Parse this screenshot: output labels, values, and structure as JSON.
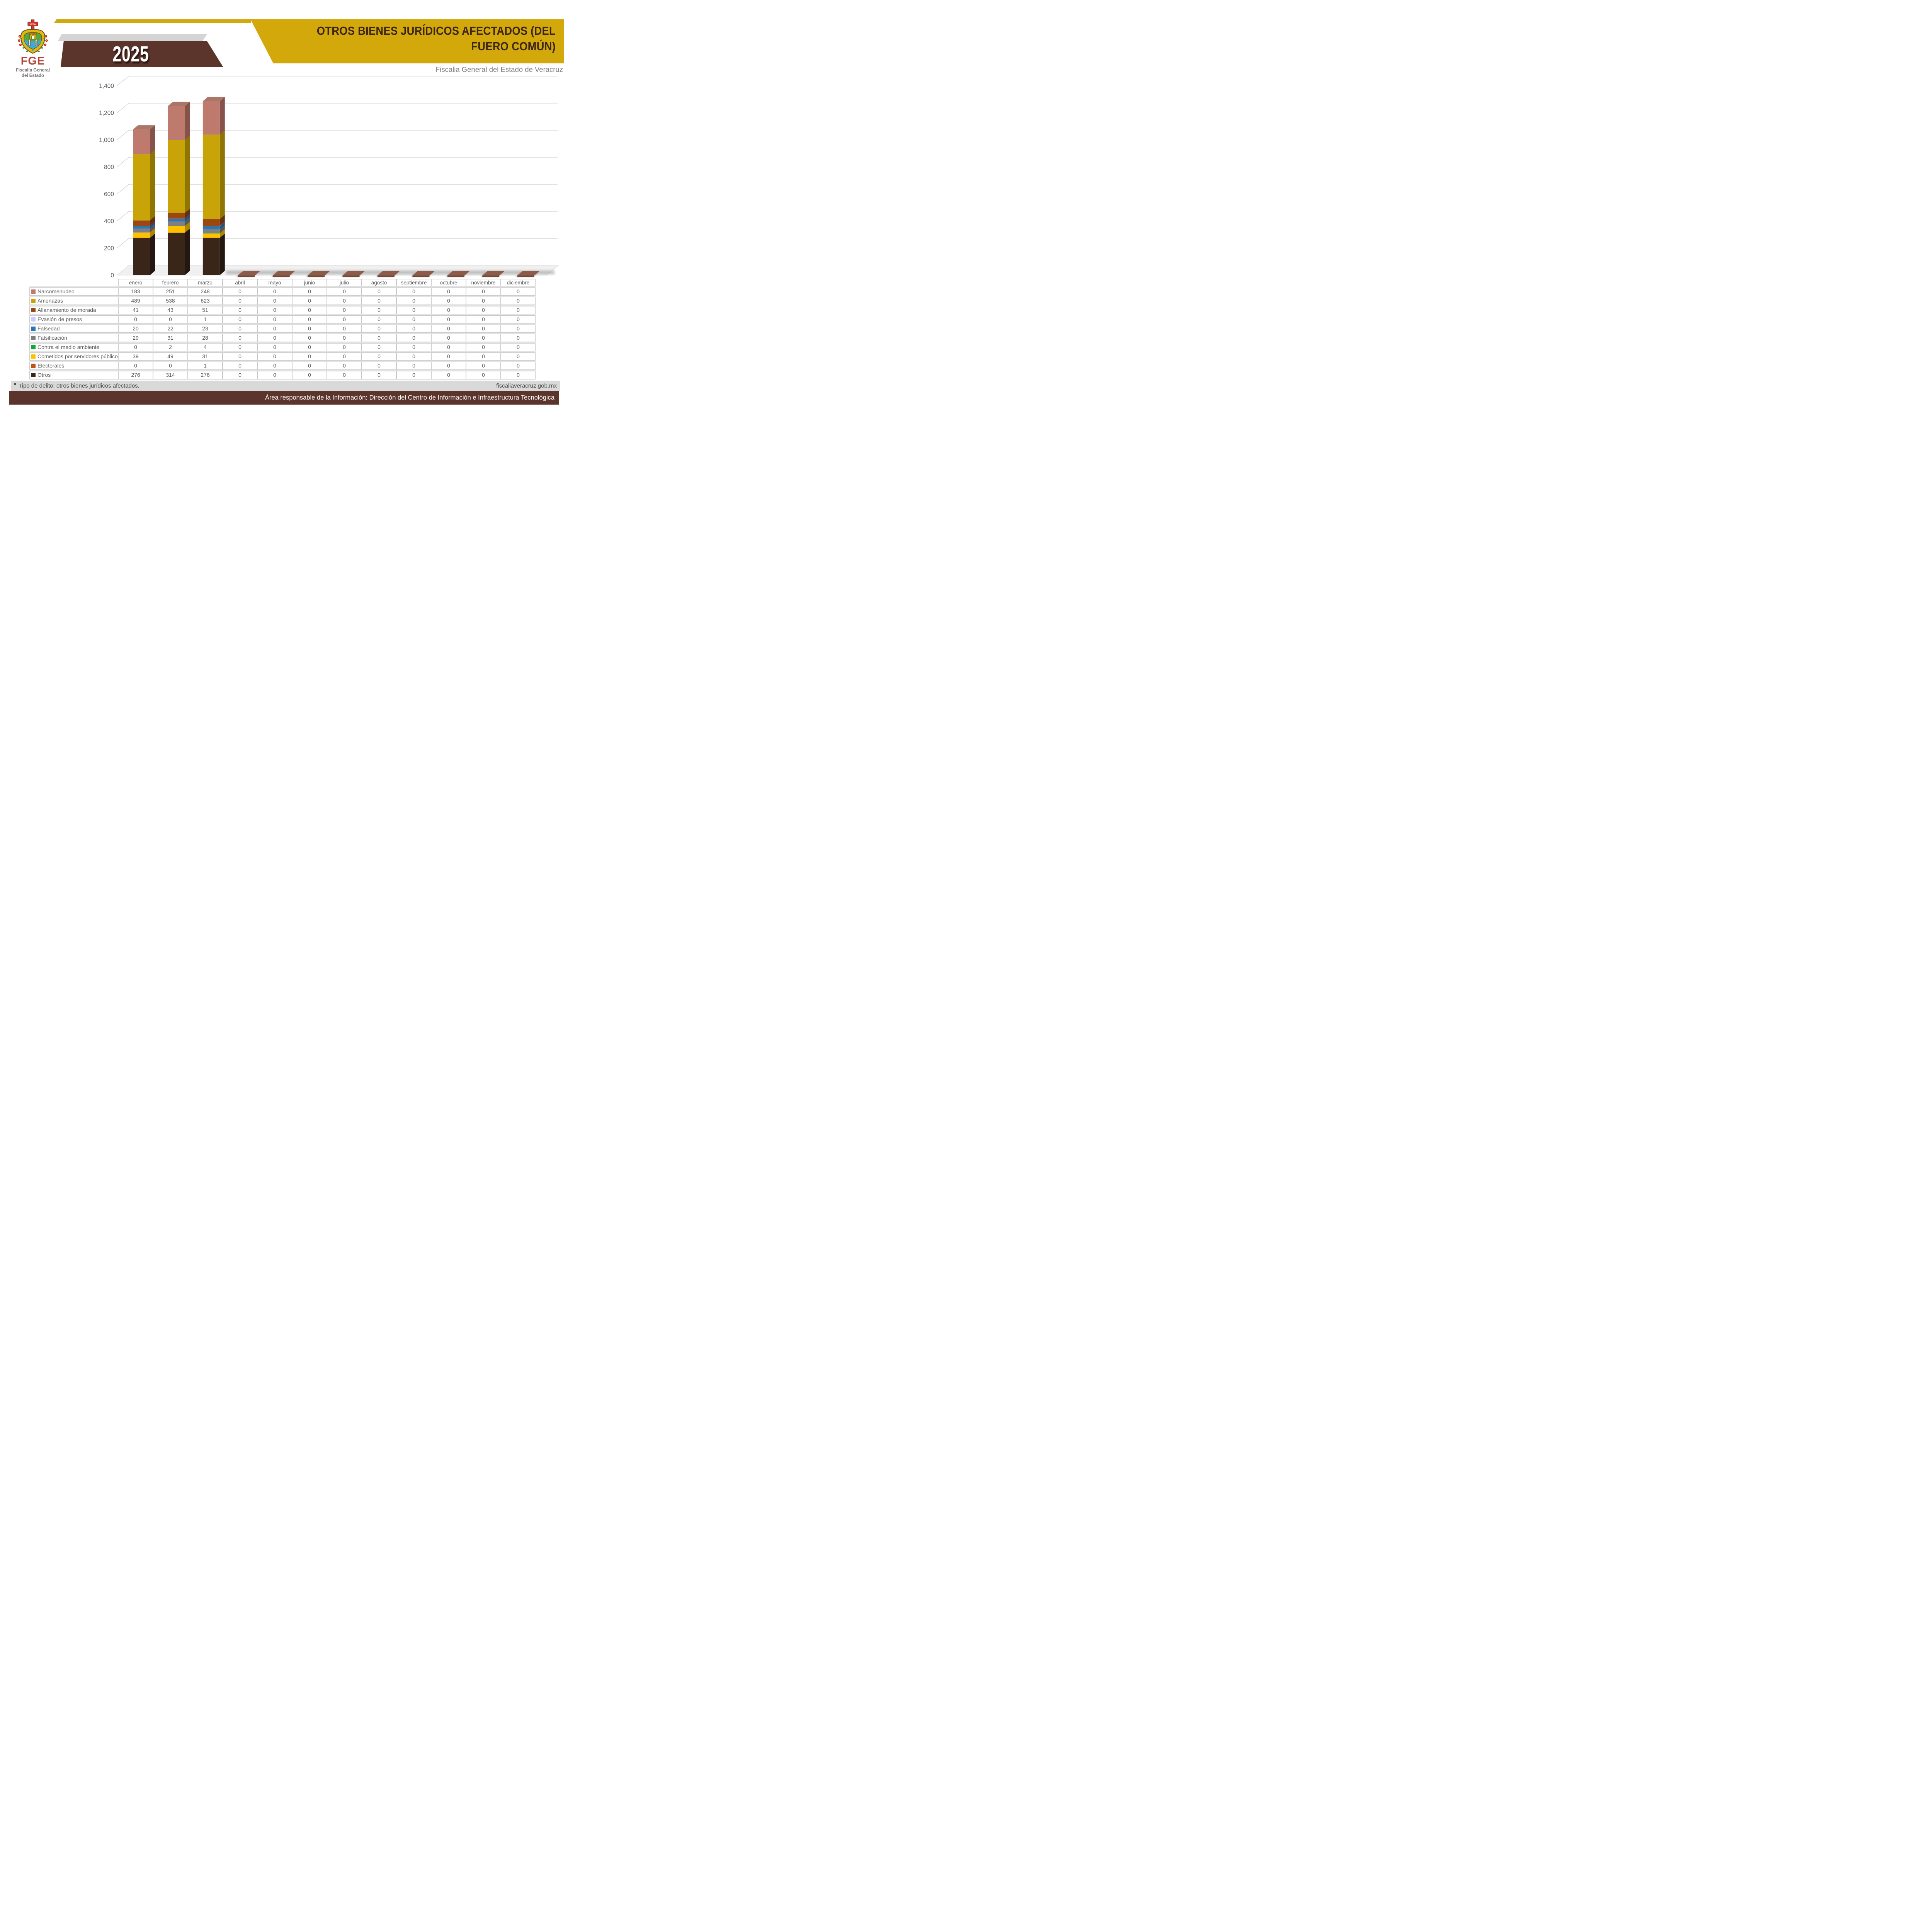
{
  "header": {
    "logo": {
      "acronym": "FGE",
      "org_line1": "Fiscalía General",
      "org_line2": "del Estado",
      "cross_label": "VERA",
      "scroll_left": "PLUS",
      "scroll_right": "ULTRA"
    },
    "year": "2025",
    "title_lines": [
      "OTROS BIENES JURÍDICOS AFECTADOS (DEL",
      "FUERO COMÚN)"
    ],
    "subtitle": "Fiscalia General del Estado de Veracruz",
    "colors": {
      "gold": "#D2A80A",
      "brown": "#5B342B"
    }
  },
  "chart_data": {
    "type": "bar",
    "stacked": true,
    "three_d": true,
    "title": "",
    "xlabel": "",
    "ylabel": "",
    "ylim": [
      0,
      1400
    ],
    "ytick_step": 200,
    "y_tick_labels": [
      "0",
      "200",
      "400",
      "600",
      "800",
      "1,000",
      "1,200",
      "1,400"
    ],
    "grid": true,
    "legend_position": "table-left",
    "stack_order": "last-listed-series-at-bottom",
    "categories": [
      "enero",
      "febrero",
      "marzo",
      "abril",
      "mayo",
      "junio",
      "julio",
      "agosto",
      "septiembre",
      "octubre",
      "noviembre",
      "diciembre"
    ],
    "series": [
      {
        "name": "Narcomenudeo",
        "color": "#BE7B6D",
        "side_color": "#855349",
        "top_color": "#A87768",
        "values": [
          183,
          251,
          248,
          0,
          0,
          0,
          0,
          0,
          0,
          0,
          0,
          0
        ]
      },
      {
        "name": "Amenazas",
        "color": "#C9A408",
        "side_color": "#8F7502",
        "top_color": "#D9BC25",
        "values": [
          489,
          538,
          623,
          0,
          0,
          0,
          0,
          0,
          0,
          0,
          0,
          0
        ]
      },
      {
        "name": "Allanamiento de morada",
        "color": "#9A480E",
        "side_color": "#68300A",
        "top_color": "#B05A1A",
        "values": [
          41,
          43,
          51,
          0,
          0,
          0,
          0,
          0,
          0,
          0,
          0,
          0
        ]
      },
      {
        "name": "Evasión de presos",
        "color": "#CCCCFF",
        "side_color": "#9A9AD6",
        "top_color": "#DEDEFF",
        "values": [
          0,
          0,
          1,
          0,
          0,
          0,
          0,
          0,
          0,
          0,
          0,
          0
        ]
      },
      {
        "name": "Falsedad",
        "color": "#2E75B6",
        "side_color": "#1F5080",
        "top_color": "#4C8BC4",
        "values": [
          20,
          22,
          23,
          0,
          0,
          0,
          0,
          0,
          0,
          0,
          0,
          0
        ]
      },
      {
        "name": "Falsificación",
        "color": "#7F7F7F",
        "side_color": "#565656",
        "top_color": "#969696",
        "values": [
          29,
          31,
          28,
          0,
          0,
          0,
          0,
          0,
          0,
          0,
          0,
          0
        ]
      },
      {
        "name": "Contra el medio ambiente",
        "color": "#12A63F",
        "side_color": "#0B7229",
        "top_color": "#2DBC57",
        "values": [
          0,
          2,
          4,
          0,
          0,
          0,
          0,
          0,
          0,
          0,
          0,
          0
        ]
      },
      {
        "name": "Cometidos por servidores públicos",
        "color": "#FFC000",
        "side_color": "#B08500",
        "top_color": "#FFD24A",
        "values": [
          39,
          49,
          31,
          0,
          0,
          0,
          0,
          0,
          0,
          0,
          0,
          0
        ]
      },
      {
        "name": "Electorales",
        "color": "#C05317",
        "side_color": "#833A10",
        "top_color": "#D3692B",
        "values": [
          0,
          0,
          1,
          0,
          0,
          0,
          0,
          0,
          0,
          0,
          0,
          0
        ]
      },
      {
        "name": "Otros",
        "color": "#3A2519",
        "side_color": "#241711",
        "top_color": "#4C3122",
        "values": [
          276,
          314,
          276,
          0,
          0,
          0,
          0,
          0,
          0,
          0,
          0,
          0
        ]
      }
    ],
    "zero_marker_color": "#8D5B49",
    "floor_color": "#F0F0F0",
    "gridline_color": "#D0D0D0",
    "axis_label_color": "#595959"
  },
  "table": {
    "corner_label": "",
    "columns": [
      "enero",
      "febrero",
      "marzo",
      "abril",
      "mayo",
      "junio",
      "julio",
      "agosto",
      "septiembre",
      "octubre",
      "noviembre",
      "diciembre"
    ],
    "rows": [
      {
        "label": "Narcomenudeo",
        "color": "#BE7B6D",
        "values": [
          183,
          251,
          248,
          0,
          0,
          0,
          0,
          0,
          0,
          0,
          0,
          0
        ]
      },
      {
        "label": "Amenazas",
        "color": "#C9A408",
        "values": [
          489,
          538,
          623,
          0,
          0,
          0,
          0,
          0,
          0,
          0,
          0,
          0
        ]
      },
      {
        "label": "Allanamiento de morada",
        "color": "#9A480E",
        "values": [
          41,
          43,
          51,
          0,
          0,
          0,
          0,
          0,
          0,
          0,
          0,
          0
        ]
      },
      {
        "label": "Evasión de presos",
        "color": "#CCCCFF",
        "values": [
          0,
          0,
          1,
          0,
          0,
          0,
          0,
          0,
          0,
          0,
          0,
          0
        ]
      },
      {
        "label": "Falsedad",
        "color": "#2E75B6",
        "values": [
          20,
          22,
          23,
          0,
          0,
          0,
          0,
          0,
          0,
          0,
          0,
          0
        ]
      },
      {
        "label": "Falsificación",
        "color": "#7F7F7F",
        "values": [
          29,
          31,
          28,
          0,
          0,
          0,
          0,
          0,
          0,
          0,
          0,
          0
        ]
      },
      {
        "label": "Contra el medio ambiente",
        "color": "#12A63F",
        "values": [
          0,
          2,
          4,
          0,
          0,
          0,
          0,
          0,
          0,
          0,
          0,
          0
        ]
      },
      {
        "label": "Cometidos por servidores públicos",
        "color": "#FFC000",
        "values": [
          39,
          49,
          31,
          0,
          0,
          0,
          0,
          0,
          0,
          0,
          0,
          0
        ]
      },
      {
        "label": "Electorales",
        "color": "#C05317",
        "values": [
          0,
          0,
          1,
          0,
          0,
          0,
          0,
          0,
          0,
          0,
          0,
          0
        ]
      },
      {
        "label": "Otros",
        "color": "#3A2519",
        "values": [
          276,
          314,
          276,
          0,
          0,
          0,
          0,
          0,
          0,
          0,
          0,
          0
        ]
      }
    ]
  },
  "footer": {
    "left_note": "Tipo de delito: otros bienes jurídicos afectados.",
    "right_note": "fiscaliaveracruz.gob.mx",
    "banner": "Área responsable de la Información: Dirección del Centro de Información e Infraestructura Tecnológica"
  }
}
